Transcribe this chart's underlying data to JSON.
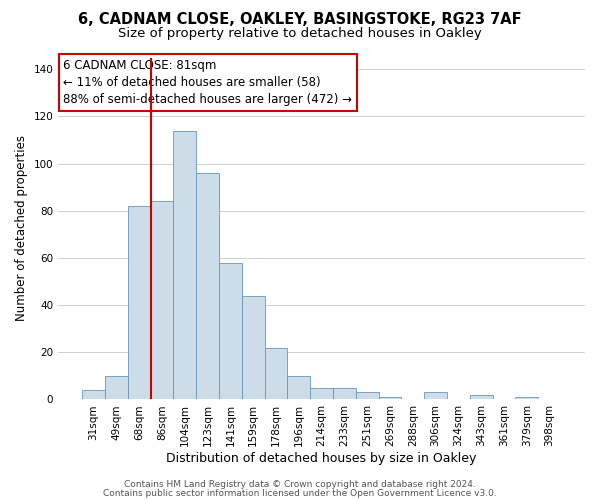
{
  "title1": "6, CADNAM CLOSE, OAKLEY, BASINGSTOKE, RG23 7AF",
  "title2": "Size of property relative to detached houses in Oakley",
  "xlabel": "Distribution of detached houses by size in Oakley",
  "ylabel": "Number of detached properties",
  "bar_labels": [
    "31sqm",
    "49sqm",
    "68sqm",
    "86sqm",
    "104sqm",
    "123sqm",
    "141sqm",
    "159sqm",
    "178sqm",
    "196sqm",
    "214sqm",
    "233sqm",
    "251sqm",
    "269sqm",
    "288sqm",
    "306sqm",
    "324sqm",
    "343sqm",
    "361sqm",
    "379sqm",
    "398sqm"
  ],
  "bar_values": [
    4,
    10,
    82,
    84,
    114,
    96,
    58,
    44,
    22,
    10,
    5,
    5,
    3,
    1,
    0,
    3,
    0,
    2,
    0,
    1,
    0
  ],
  "bar_color": "#ccdce8",
  "bar_edge_color": "#6699bb",
  "grid_color": "#d0d0d0",
  "vline_x_index": 2.5,
  "vline_color": "#cc0000",
  "annotation_line1": "6 CADNAM CLOSE: 81sqm",
  "annotation_line2": "← 11% of detached houses are smaller (58)",
  "annotation_line3": "88% of semi-detached houses are larger (472) →",
  "ylim": [
    0,
    145
  ],
  "yticks": [
    0,
    20,
    40,
    60,
    80,
    100,
    120,
    140
  ],
  "footer_line1": "Contains HM Land Registry data © Crown copyright and database right 2024.",
  "footer_line2": "Contains public sector information licensed under the Open Government Licence v3.0.",
  "title1_fontsize": 10.5,
  "title2_fontsize": 9.5,
  "xlabel_fontsize": 9,
  "ylabel_fontsize": 8.5,
  "tick_fontsize": 7.5,
  "annotation_fontsize": 8.5,
  "footer_fontsize": 6.5
}
